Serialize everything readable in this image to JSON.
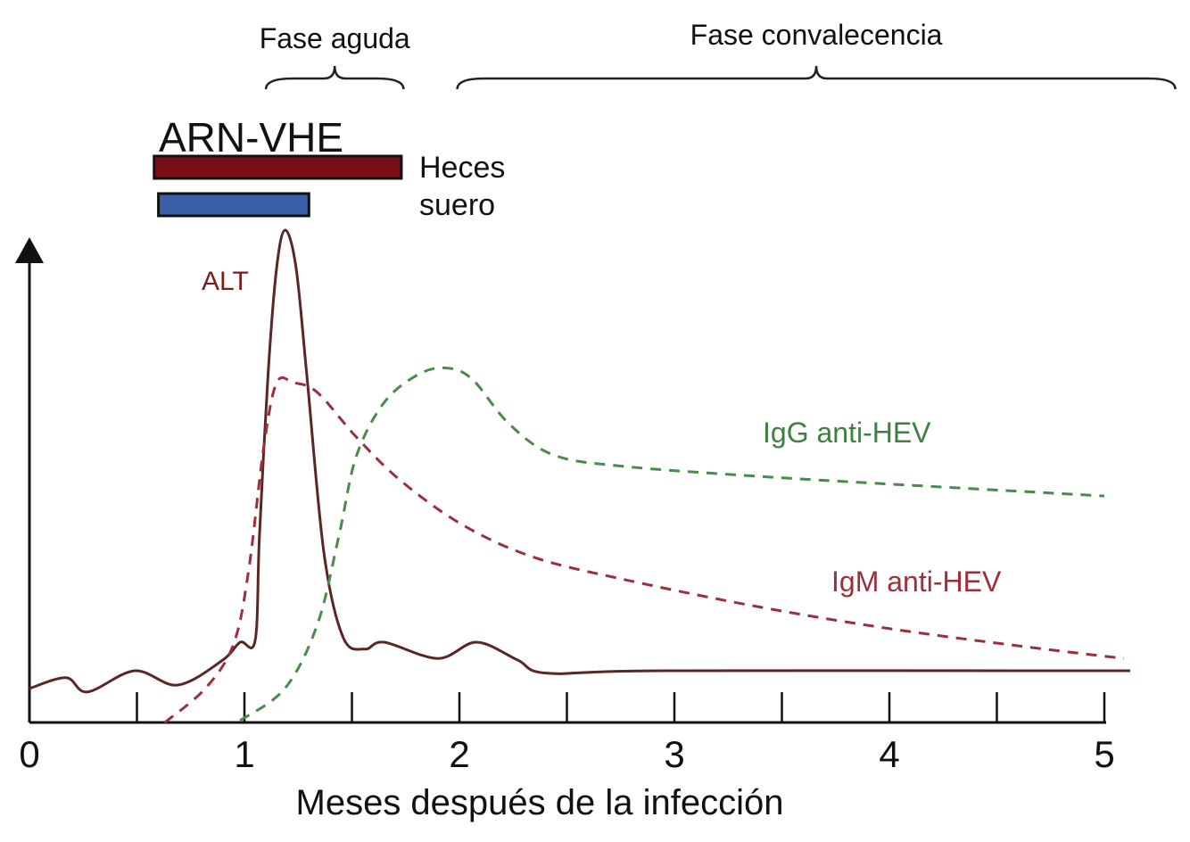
{
  "chart_data": {
    "type": "line",
    "title": "",
    "xlabel": "Meses después de la infección",
    "ylabel": "",
    "xlim": [
      0,
      5
    ],
    "ylim": [
      0,
      100
    ],
    "x_ticks": [
      "0",
      "1",
      "2",
      "3",
      "4",
      "5"
    ],
    "grid": false,
    "colors": {
      "alt": "#5a2626",
      "igm": "#9b2f3a",
      "igg": "#4a8a4a",
      "heces": "#7a0f1a",
      "suero": "#3a5ea8",
      "alt_label": "#7a1f1f",
      "igm_label": "#9b2f3a",
      "igg_label": "#3f7f3f"
    },
    "phases": [
      {
        "label": "Fase aguda",
        "start": 1.1,
        "end": 1.74
      },
      {
        "label": "Fase convalecencia",
        "start": 1.99,
        "end": 5.33
      }
    ],
    "rna": {
      "title": "ARN-VHE",
      "bars": [
        {
          "label": "Heces",
          "start": 0.58,
          "end": 1.73
        },
        {
          "label": "suero",
          "start": 0.6,
          "end": 1.3
        }
      ]
    },
    "series": [
      {
        "name": "ALT",
        "style": "solid",
        "x": [
          0,
          0.17,
          0.27,
          0.49,
          0.69,
          0.9,
          0.98,
          1.05,
          1.07,
          1.11,
          1.15,
          1.19,
          1.24,
          1.29,
          1.37,
          1.46,
          1.56,
          1.65,
          1.9,
          2.08,
          2.27,
          2.41,
          2.95,
          5.12
        ],
        "y": [
          6.9,
          9.1,
          6.2,
          10.5,
          7.6,
          12.7,
          16.3,
          16.7,
          38,
          70.7,
          92.4,
          100,
          92.4,
          70.7,
          34.4,
          17.2,
          14.9,
          16.3,
          13,
          16.3,
          12.7,
          10,
          10.5,
          10.5
        ]
      },
      {
        "name": "IgM anti-HEV",
        "style": "dashed",
        "x": [
          0.63,
          0.82,
          0.95,
          1.02,
          1.09,
          1.15,
          1.23,
          1.34,
          1.52,
          1.73,
          2.02,
          2.35,
          2.77,
          3.39,
          4.01,
          4.63,
          5.09
        ],
        "y": [
          0,
          7,
          16,
          31,
          56,
          69,
          69,
          67,
          58,
          49,
          40,
          33.5,
          29,
          23.5,
          19,
          15.4,
          13
        ]
      },
      {
        "name": "IgG anti-HEV",
        "style": "dashed",
        "x": [
          0.98,
          1.19,
          1.34,
          1.44,
          1.52,
          1.65,
          1.81,
          1.94,
          2.06,
          2.23,
          2.44,
          2.77,
          3.39,
          4.01,
          5.0
        ],
        "y": [
          0.4,
          7,
          20,
          38,
          54,
          65,
          70.7,
          72,
          69.7,
          60.7,
          54.3,
          52,
          50,
          48.4,
          46
        ]
      }
    ]
  }
}
